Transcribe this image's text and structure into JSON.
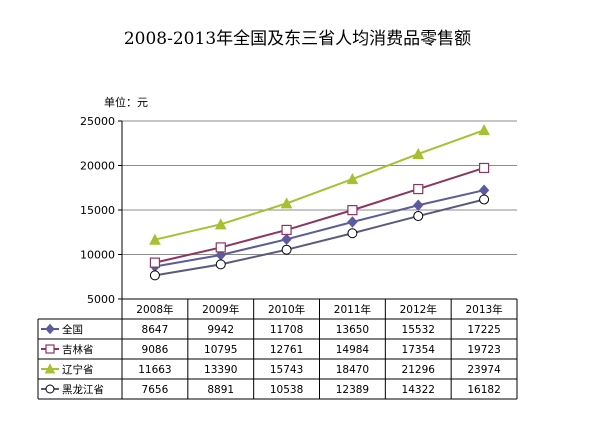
{
  "chart_data": {
    "type": "line",
    "title": "2008-2013年全国及东三省人均消费品零售额",
    "unit": "单位：元",
    "categories": [
      "2008年",
      "2009年",
      "2010年",
      "2011年",
      "2012年",
      "2013年"
    ],
    "ylim": [
      5000,
      25000
    ],
    "yticks": [
      5000,
      10000,
      15000,
      20000,
      25000
    ],
    "grid": true,
    "legend": "data-table-left",
    "series": [
      {
        "name": "全国",
        "marker": "diamond",
        "color": "#5B5B9E",
        "values": [
          8647,
          9942,
          11708,
          13650,
          15532,
          17225
        ]
      },
      {
        "name": "吉林省",
        "marker": "square",
        "color": "#8E3461",
        "values": [
          9086,
          10795,
          12761,
          14984,
          17354,
          19723
        ]
      },
      {
        "name": "辽宁省",
        "marker": "triangle",
        "color": "#A9BF32",
        "values": [
          11663,
          13390,
          15743,
          18470,
          21296,
          23974
        ]
      },
      {
        "name": "黑龙江省",
        "marker": "circle",
        "color": "#5A5A80",
        "values": [
          7656,
          8891,
          10538,
          12389,
          14322,
          16182
        ]
      }
    ]
  }
}
